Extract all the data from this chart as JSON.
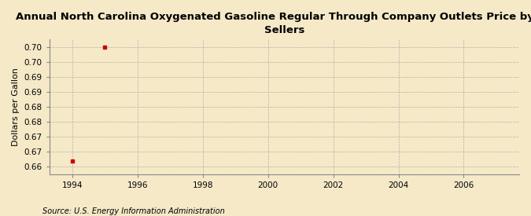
{
  "title": "Annual North Carolina Oxygenated Gasoline Regular Through Company Outlets Price by All\nSellers",
  "ylabel": "Dollars per Gallon",
  "source": "Source: U.S. Energy Information Administration",
  "x_data": [
    1994,
    1995
  ],
  "y_data": [
    0.662,
    0.7
  ],
  "marker_color": "#cc0000",
  "xlim": [
    1993.3,
    2007.7
  ],
  "ylim": [
    0.6575,
    0.7025
  ],
  "ytick_positions": [
    0.66,
    0.665,
    0.67,
    0.675,
    0.68,
    0.685,
    0.69,
    0.695,
    0.7
  ],
  "ytick_labels": [
    "0.66",
    "0.67",
    "0.67",
    "0.68",
    "0.68",
    "0.69",
    "0.69",
    "0.70",
    "0.70"
  ],
  "xticks": [
    1994,
    1996,
    1998,
    2000,
    2002,
    2004,
    2006
  ],
  "background_color": "#f5e9c8",
  "grid_color": "#999999",
  "title_fontsize": 9.5,
  "label_fontsize": 8,
  "tick_fontsize": 7.5,
  "source_fontsize": 7
}
